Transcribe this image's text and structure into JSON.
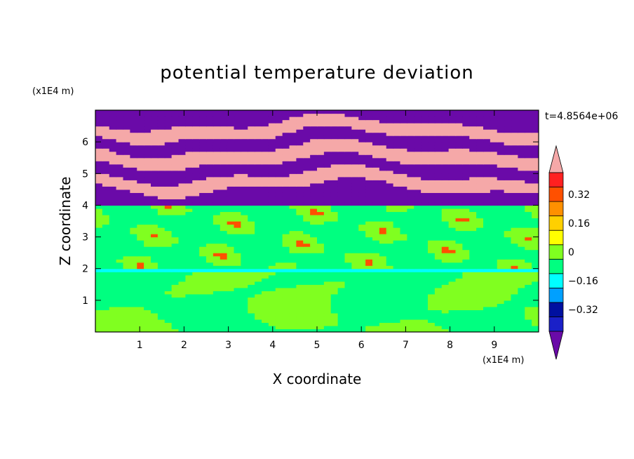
{
  "chart_data": {
    "type": "heatmap",
    "title": "potential temperature deviation",
    "xlabel": "X coordinate",
    "ylabel": "Z coordinate",
    "x_unit": "(x1E4 m)",
    "y_unit": "(x1E4 m)",
    "time_label": "t=4.8564e+06",
    "xlim": [
      0,
      10
    ],
    "ylim": [
      0,
      7
    ],
    "x_ticks": [
      1,
      2,
      3,
      4,
      5,
      6,
      7,
      8,
      9
    ],
    "y_ticks": [
      1,
      2,
      3,
      4,
      5,
      6
    ],
    "colorbar": {
      "levels": [
        -0.48,
        -0.4,
        -0.32,
        -0.24,
        -0.16,
        -0.08,
        0,
        0.08,
        0.16,
        0.24,
        0.32,
        0.4,
        0.48
      ],
      "tick_labels": [
        "−0.32",
        "−0.16",
        "0",
        "0.16",
        "0.32"
      ],
      "tick_values": [
        -0.32,
        -0.16,
        0,
        0.16,
        0.32
      ],
      "colors": [
        "#6a0aa8",
        "#1a20c8",
        "#0010a0",
        "#00a0ff",
        "#00ffff",
        "#00ff80",
        "#80ff20",
        "#ffff00",
        "#ffd000",
        "#ff9000",
        "#ff5000",
        "#ff2020",
        "#f5a8a8"
      ],
      "extend": "both"
    },
    "regions": {
      "lower_layer": {
        "z_range": [
          0,
          1.9
        ],
        "dominant_value": 0.04,
        "secondary_value": -0.04
      },
      "layer_2": {
        "z_range": [
          1.9,
          2.05
        ],
        "dominant_value": -0.16
      },
      "mid_layer": {
        "z_range": [
          2.05,
          4.0
        ],
        "dominant_value": -0.04
      },
      "layer_4": {
        "z_range": [
          3.9,
          4.05
        ],
        "dominant_value": -0.12
      },
      "upper_layer": {
        "z_range": [
          4.05,
          7.0
        ],
        "bands": [
          {
            "z_center": 4.35,
            "value": -0.44
          },
          {
            "z_center": 4.75,
            "value": 0.46
          },
          {
            "z_center": 5.15,
            "value": -0.44
          },
          {
            "z_center": 5.6,
            "value": 0.46
          },
          {
            "z_center": 6.0,
            "value": -0.44
          },
          {
            "z_center": 6.4,
            "value": 0.46
          },
          {
            "z_center": 6.8,
            "value": -0.44
          }
        ]
      }
    }
  }
}
